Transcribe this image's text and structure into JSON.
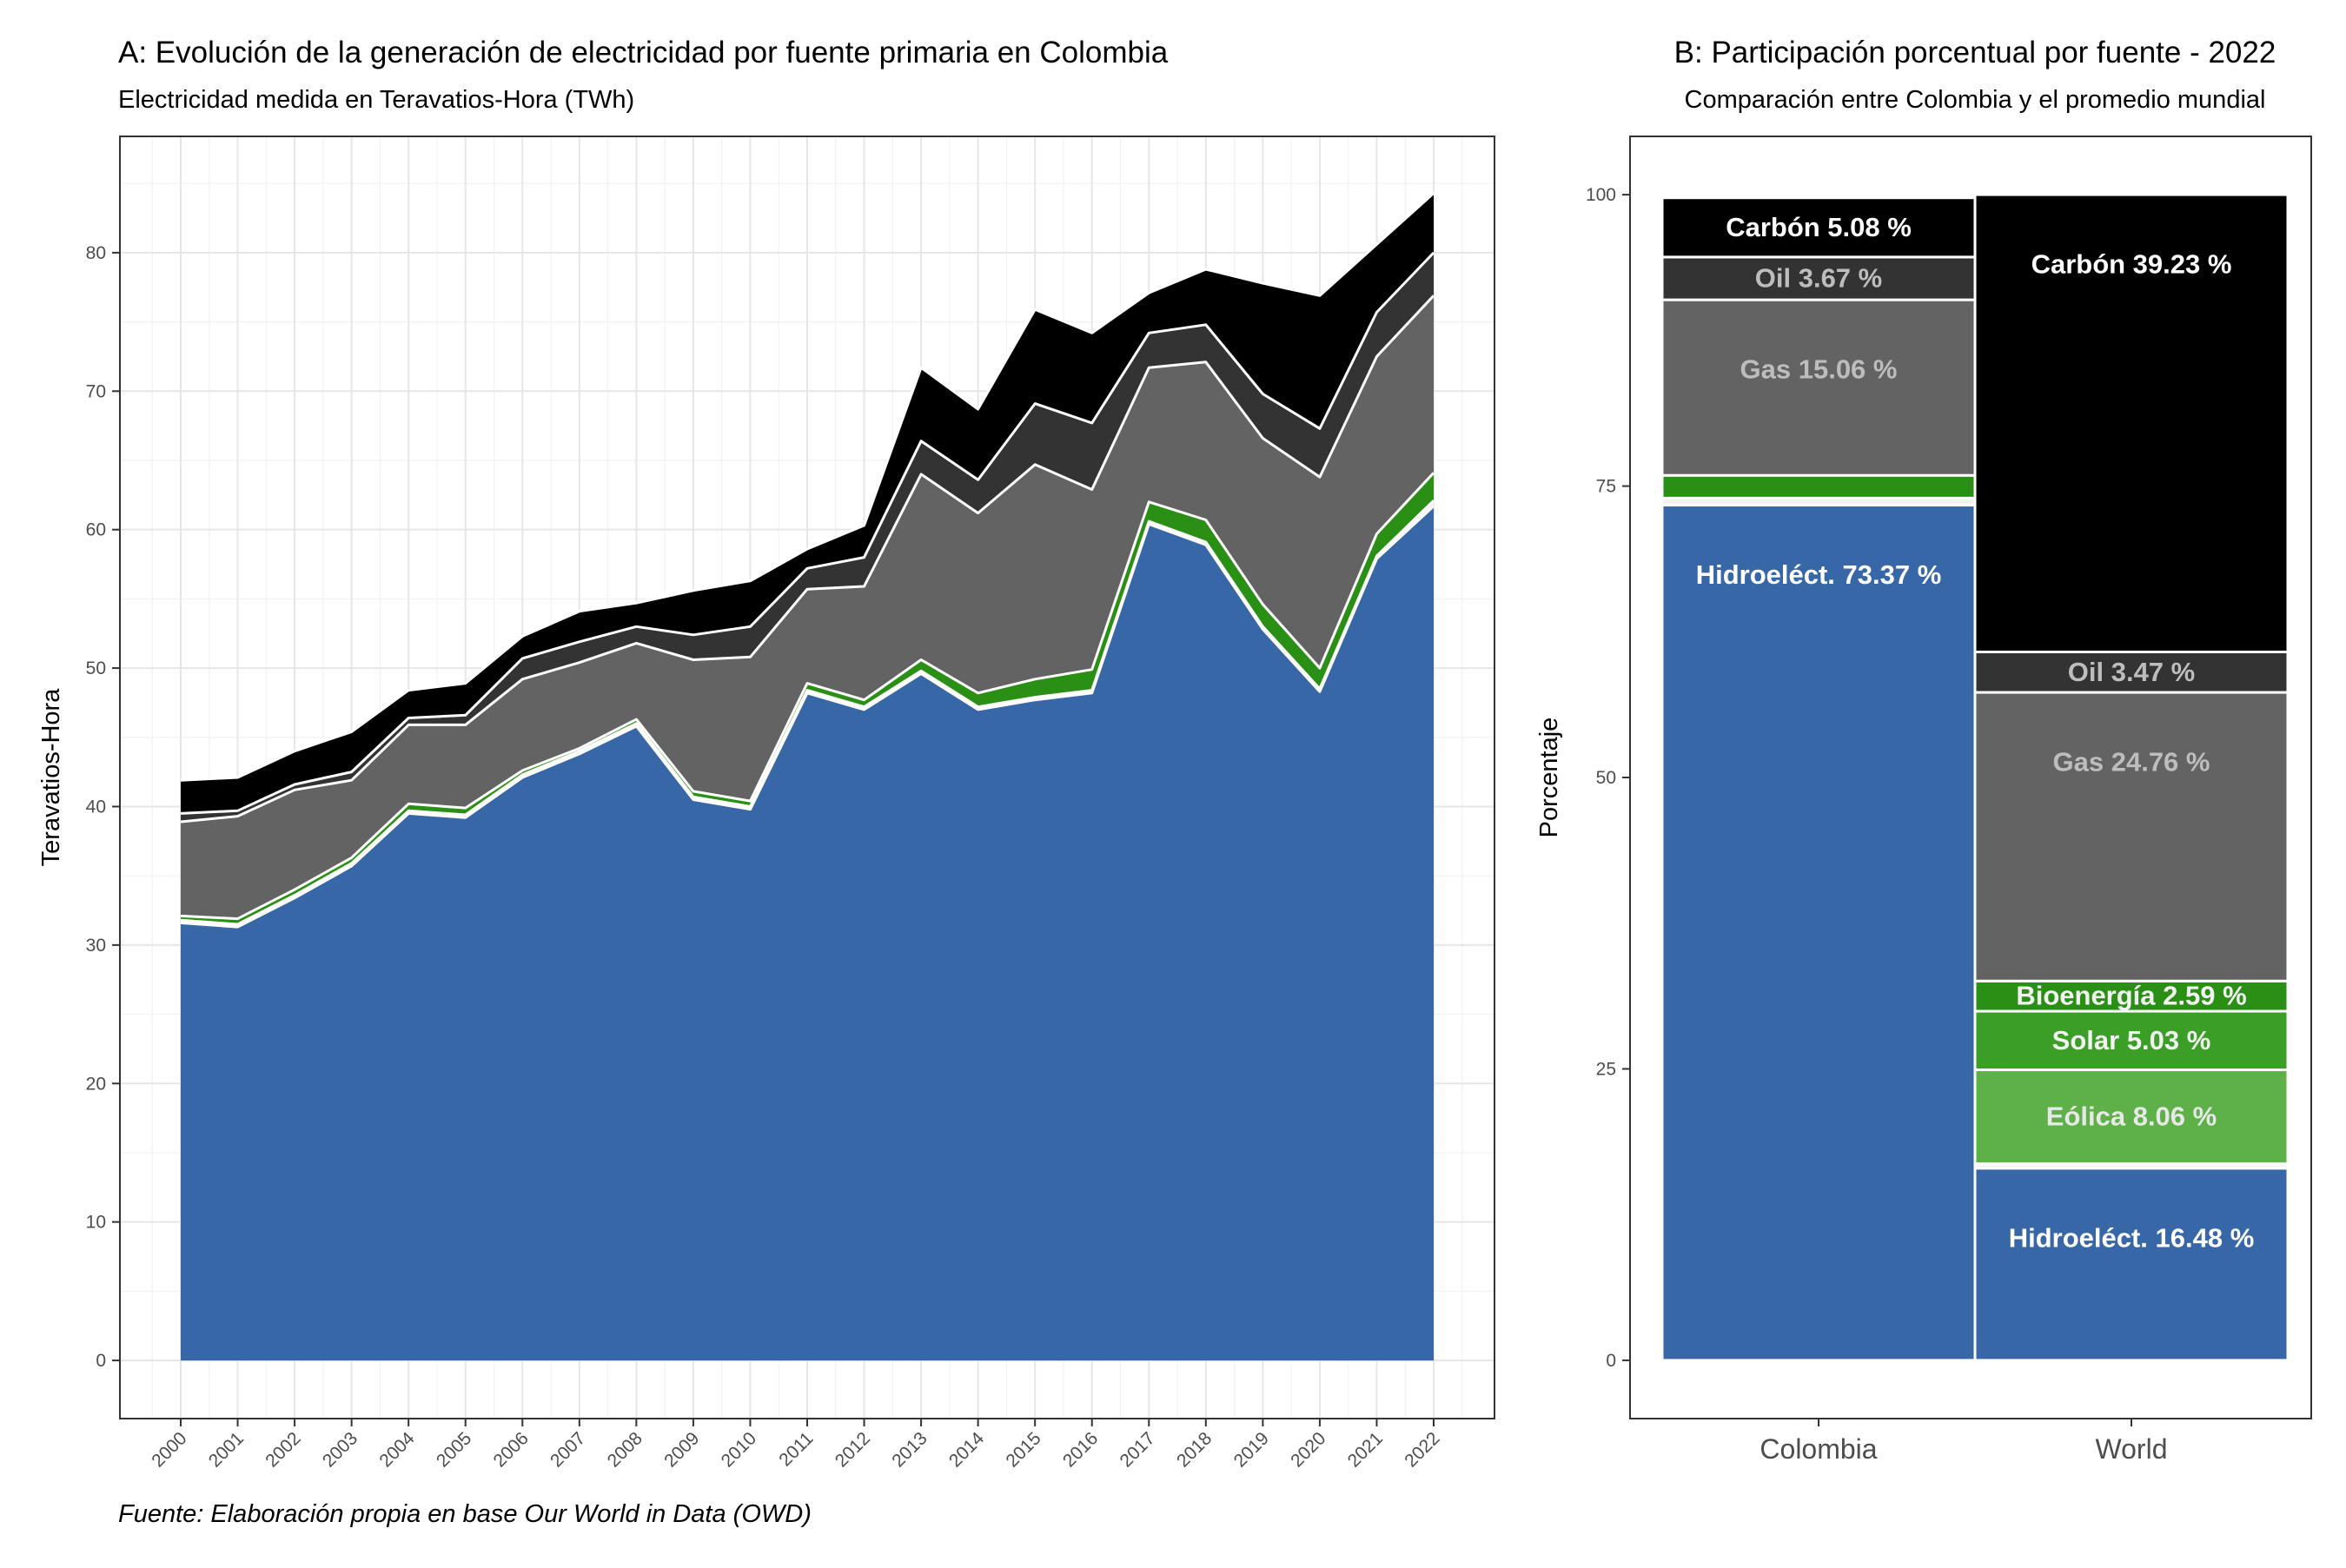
{
  "caption": "Fuente: Elaboración propia en base Our World in Data (OWD)",
  "chart_data": [
    {
      "type": "area",
      "stacked": true,
      "title": "A: Evolución de la generación de electricidad por fuente primaria en Colombia",
      "subtitle": "Electricidad medida en Teravatios-Hora (TWh)",
      "xlabel": "",
      "ylabel": "Teravatios-Hora",
      "ylim": [
        -4.2,
        88.4
      ],
      "yticks": [
        0,
        10,
        20,
        30,
        40,
        50,
        60,
        70,
        80
      ],
      "grid": true,
      "legend": "none",
      "x": [
        "2000",
        "2001",
        "2002",
        "2003",
        "2004",
        "2005",
        "2006",
        "2007",
        "2008",
        "2009",
        "2010",
        "2011",
        "2012",
        "2013",
        "2014",
        "2015",
        "2016",
        "2017",
        "2018",
        "2019",
        "2020",
        "2021",
        "2022"
      ],
      "series": [
        {
          "color": "#3767a7",
          "values": [
            31.6,
            31.3,
            33.4,
            35.7,
            39.5,
            39.2,
            42.1,
            43.8,
            45.8,
            40.5,
            39.8,
            48.2,
            47.0,
            49.6,
            47.0,
            47.7,
            48.2,
            60.4,
            58.9,
            52.8,
            48.3,
            57.9,
            61.7
          ]
        },
        {
          "color": "#f2f2f2",
          "values": [
            0.2,
            0.2,
            0.2,
            0.2,
            0.2,
            0.2,
            0.2,
            0.2,
            0.2,
            0.2,
            0.2,
            0.2,
            0.2,
            0.2,
            0.2,
            0.2,
            0.2,
            0.2,
            0.2,
            0.2,
            0.2,
            0.2,
            0.4
          ]
        },
        {
          "color": "#2a9015",
          "values": [
            0.3,
            0.4,
            0.4,
            0.4,
            0.5,
            0.5,
            0.3,
            0.2,
            0.3,
            0.4,
            0.4,
            0.5,
            0.5,
            0.8,
            1.0,
            1.3,
            1.5,
            1.4,
            1.6,
            1.6,
            1.5,
            1.6,
            2.0
          ]
        },
        {
          "color": "#636363",
          "values": [
            6.8,
            7.4,
            7.2,
            5.6,
            5.7,
            6.0,
            6.6,
            6.2,
            5.5,
            9.5,
            10.4,
            6.8,
            8.2,
            13.4,
            13.0,
            15.5,
            13.0,
            9.7,
            11.4,
            12.0,
            13.8,
            12.8,
            12.8
          ]
        },
        {
          "color": "#333333",
          "values": [
            0.6,
            0.4,
            0.4,
            0.6,
            0.5,
            0.7,
            1.5,
            1.5,
            1.2,
            1.8,
            2.2,
            1.5,
            2.1,
            2.4,
            2.4,
            4.4,
            4.8,
            2.5,
            2.7,
            3.2,
            3.5,
            3.2,
            3.1
          ]
        },
        {
          "color": "#000000",
          "values": [
            2.4,
            2.4,
            2.4,
            2.9,
            2.0,
            2.3,
            1.6,
            2.2,
            1.7,
            3.2,
            3.3,
            1.4,
            2.3,
            5.3,
            5.1,
            6.8,
            6.5,
            2.9,
            4.0,
            8.0,
            9.6,
            4.9,
            4.3
          ]
        }
      ]
    },
    {
      "type": "bar",
      "stacked": true,
      "title": "B: Participación porcentual por fuente - 2022",
      "subtitle": "Comparación entre Colombia y el promedio mundial",
      "xlabel": "",
      "ylabel": "Porcentaje",
      "ylim": [
        -5,
        105
      ],
      "yticks": [
        0,
        25,
        50,
        75,
        100
      ],
      "categories": [
        "Colombia",
        "World"
      ],
      "grid": false,
      "legend": "none",
      "stacks": [
        {
          "category": "Colombia",
          "segments": [
            {
              "label": "Hidroeléct. 73.37 %",
              "value": 73.37,
              "color": "#3767a7",
              "text_color": "#ffffff"
            },
            {
              "label": "",
              "value": 0.6,
              "color": "#f2f2f2",
              "text_color": "#ffffff"
            },
            {
              "label": "",
              "value": 1.95,
              "color": "#2a9015",
              "text_color": "#ffffff"
            },
            {
              "label": "Gas 15.06 %",
              "value": 15.06,
              "color": "#636363",
              "text_color": "#bdbdbd"
            },
            {
              "label": "Oil 3.67 %",
              "value": 3.67,
              "color": "#333333",
              "text_color": "#bdbdbd"
            },
            {
              "label": "Carbón 5.08 %",
              "value": 5.08,
              "color": "#000000",
              "text_color": "#ffffff"
            }
          ]
        },
        {
          "category": "World",
          "segments": [
            {
              "label": "Hidroeléct. 16.48 %",
              "value": 16.48,
              "color": "#3767a7",
              "text_color": "#ffffff"
            },
            {
              "label": "",
              "value": 0.38,
              "color": "#f2f2f2",
              "text_color": "#ffffff"
            },
            {
              "label": "Eólica 8.06 %",
              "value": 8.06,
              "color": "#5db148",
              "text_color": "#e8e8e8"
            },
            {
              "label": "Solar 5.03 %",
              "value": 5.03,
              "color": "#3b9e26",
              "text_color": "#f2f2f2"
            },
            {
              "label": "Bioenergía 2.59 %",
              "value": 2.59,
              "color": "#2a9015",
              "text_color": "#f2f2f2"
            },
            {
              "label": "Gas 24.76 %",
              "value": 24.76,
              "color": "#636363",
              "text_color": "#bdbdbd"
            },
            {
              "label": "Oil 3.47 %",
              "value": 3.47,
              "color": "#333333",
              "text_color": "#bdbdbd"
            },
            {
              "label": "Carbón 39.23 %",
              "value": 39.23,
              "color": "#000000",
              "text_color": "#ffffff"
            }
          ]
        }
      ]
    }
  ]
}
